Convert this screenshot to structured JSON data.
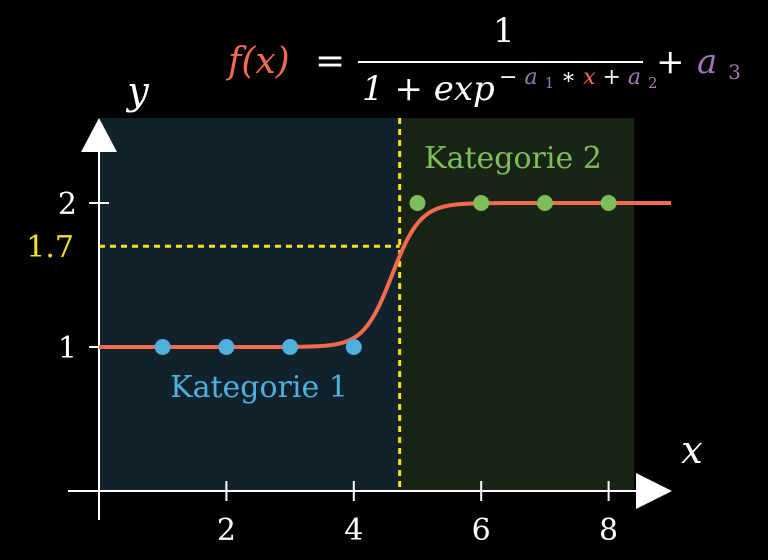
{
  "colors": {
    "background": "#000000",
    "axis": "#ffffff",
    "region_left": "#12222c",
    "region_right": "#1a2416",
    "curve": "#f26b4f",
    "threshold": "#f5e21a",
    "category1": "#4fb0de",
    "category2": "#7dbd5a",
    "params": "#9e78b8"
  },
  "formula": {
    "lhs": "f(x)",
    "equals": "=",
    "numerator": "1",
    "denominator_base": "1 + exp",
    "exp_minus": "−",
    "a1": "a",
    "a1_sub": "1",
    "times": "∗",
    "x": "x",
    "plus": "+",
    "a2": "a",
    "a2_sub": "2",
    "outer_plus": "+",
    "a3": "a",
    "a3_sub": "3"
  },
  "chart_data": {
    "type": "scatter",
    "xlabel": "x",
    "ylabel": "y",
    "xlim": [
      0,
      8.6
    ],
    "ylim": [
      0,
      2.6
    ],
    "x_ticks": [
      2,
      4,
      6,
      8
    ],
    "x_tick_labels": [
      "2",
      "4",
      "6",
      "8"
    ],
    "y_ticks": [
      1,
      2
    ],
    "y_tick_labels": [
      "1",
      "2"
    ],
    "grid": false,
    "threshold": {
      "x": 4.72,
      "y": 1.7,
      "label": "1.7"
    },
    "regions": [
      {
        "name": "Kategorie 1",
        "x_from": 0,
        "x_to": 4.72
      },
      {
        "name": "Kategorie 2",
        "x_from": 4.72,
        "x_to": 8.4
      }
    ],
    "series": [
      {
        "name": "Kategorie 1",
        "x": [
          1,
          2,
          3,
          4
        ],
        "y": [
          1,
          1,
          1,
          1
        ]
      },
      {
        "name": "Kategorie 2",
        "x": [
          5,
          6,
          7,
          8
        ],
        "y": [
          2,
          2,
          2,
          2
        ]
      }
    ],
    "curve": {
      "x_from": 0,
      "x_to": 9,
      "a1": 4.5,
      "a2": 20.7,
      "a3": 1
    }
  }
}
